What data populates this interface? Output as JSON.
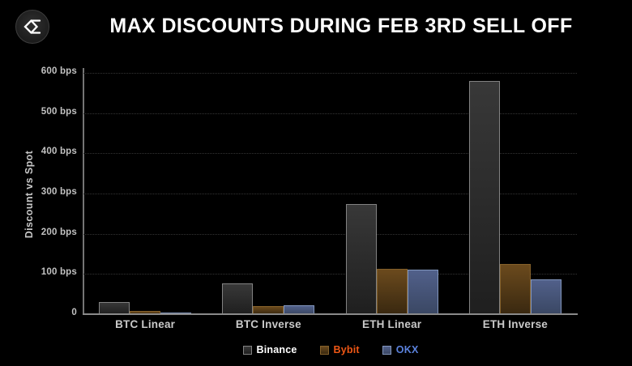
{
  "header": {
    "title": "MAX DISCOUNTS DURING FEB 3RD SELL OFF",
    "logo": "sigma-diamond-logo"
  },
  "colors": {
    "background": "#000000",
    "title_text": "#ffffff",
    "axis_line": "#8a8a8a",
    "tick_text": "#c2c2c2",
    "gridline": "#343434"
  },
  "chart_data": {
    "type": "bar",
    "title": "MAX DISCOUNTS DURING FEB 3RD SELL OFF",
    "xlabel": "",
    "ylabel": "Discount vs Spot",
    "ylim": [
      0,
      600
    ],
    "ytick_step": 100,
    "yticks_labels": [
      "0",
      "100 bps",
      "200 bps",
      "300 bps",
      "400 bps",
      "500 bps",
      "600 bps"
    ],
    "grid": "horizontal-dotted",
    "legend_position": "bottom-center",
    "categories": [
      "BTC Linear",
      "BTC Inverse",
      "ETH Linear",
      "ETH Inverse"
    ],
    "series": [
      {
        "name": "Binance",
        "values": [
          30,
          77,
          273,
          580
        ],
        "fill_top": "#383838",
        "fill_bottom": "#1f1f1f",
        "stroke": "#828282",
        "label_color": "#ffffff"
      },
      {
        "name": "Bybit",
        "values": [
          9,
          20,
          112,
          124
        ],
        "fill_top": "#6b4a1d",
        "fill_bottom": "#392810",
        "stroke": "#84602a",
        "label_color": "#ef5715"
      },
      {
        "name": "OKX",
        "values": [
          5,
          23,
          110,
          87
        ],
        "fill_top": "#51608a",
        "fill_bottom": "#3a4763",
        "stroke": "#8296bd",
        "label_color": "#5b82dd"
      }
    ]
  }
}
